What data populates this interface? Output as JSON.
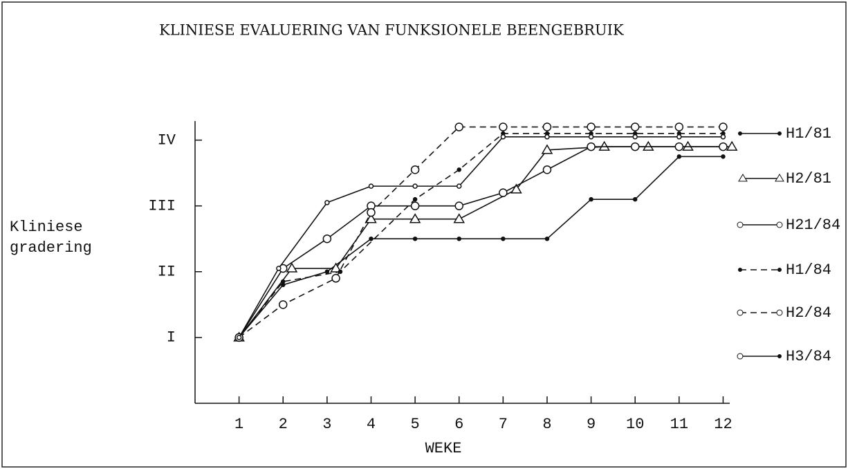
{
  "chart_data": {
    "type": "line",
    "title": "KLINIESE EVALUERING VAN FUNKSIONELE BEENGEBRUIK",
    "xlabel": "WEKE",
    "ylabel": [
      "Kliniese",
      "gradering"
    ],
    "xlim": [
      0,
      12.15
    ],
    "ylim": [
      0,
      4.5
    ],
    "xticks": [
      1,
      2,
      3,
      4,
      5,
      6,
      7,
      8,
      9,
      10,
      11,
      12
    ],
    "yticks": [
      {
        "value": 1,
        "label": "I"
      },
      {
        "value": 2,
        "label": "II"
      },
      {
        "value": 3,
        "label": "III"
      },
      {
        "value": 4,
        "label": "IV"
      }
    ],
    "series": [
      {
        "name": "H1/81",
        "color": "#111",
        "marker": "dot",
        "dashed": false,
        "x": [
          1,
          2,
          3,
          4,
          5,
          6,
          7,
          8,
          9,
          10,
          11,
          12
        ],
        "values": [
          1,
          1.8,
          2.0,
          2.5,
          2.5,
          2.5,
          2.5,
          2.5,
          3.1,
          3.1,
          3.75,
          3.75
        ]
      },
      {
        "name": "H2/81",
        "color": "#111",
        "marker": "triangle",
        "dashed": false,
        "x": [
          1,
          2.2,
          3.2,
          4,
          5,
          6,
          7.3,
          8,
          9.3,
          10.3,
          11.2,
          12.2
        ],
        "values": [
          1,
          2.05,
          2.05,
          2.8,
          2.8,
          2.8,
          3.25,
          3.85,
          3.9,
          3.9,
          3.9,
          3.9
        ]
      },
      {
        "name": "H21/84",
        "color": "#111",
        "marker": "circle",
        "dashed": false,
        "x": [
          1,
          2,
          3,
          4,
          5,
          6,
          7,
          8,
          9,
          10,
          11,
          12
        ],
        "values": [
          1,
          2.05,
          2.5,
          3.0,
          3.0,
          3.0,
          3.2,
          3.55,
          3.9,
          3.9,
          3.9,
          3.9
        ]
      },
      {
        "name": "H1/84",
        "color": "#111",
        "marker": "dot",
        "dashed": true,
        "x": [
          1,
          2,
          3.3,
          5,
          6,
          7,
          8,
          9,
          10,
          11,
          12
        ],
        "values": [
          1,
          1.85,
          2.0,
          3.1,
          3.55,
          4.1,
          4.1,
          4.1,
          4.1,
          4.1,
          4.1
        ]
      },
      {
        "name": "H2/84",
        "color": "#111",
        "marker": "circle",
        "dashed": true,
        "x": [
          1,
          2,
          3.2,
          4,
          5,
          6,
          7,
          8,
          9,
          10,
          11,
          12
        ],
        "values": [
          1,
          1.5,
          1.9,
          2.9,
          3.55,
          4.2,
          4.2,
          4.2,
          4.2,
          4.2,
          4.2,
          4.2
        ]
      },
      {
        "name": "H3/84",
        "color": "#111",
        "marker": "smallcircle",
        "dashed": false,
        "x": [
          1,
          1.9,
          3,
          4,
          5,
          6,
          7,
          8,
          9,
          10,
          11,
          12
        ],
        "values": [
          1,
          2.05,
          3.05,
          3.3,
          3.3,
          3.3,
          4.05,
          4.05,
          4.05,
          4.05,
          4.05,
          4.05
        ]
      }
    ]
  }
}
